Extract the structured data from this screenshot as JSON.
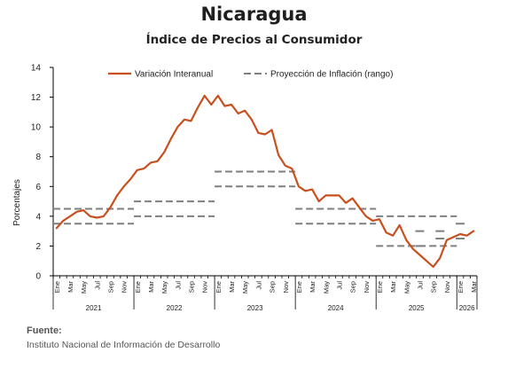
{
  "header": {
    "title": "Nicaragua",
    "subtitle": "Índice de Precios al Consumidor"
  },
  "source": {
    "label": "Fuente:",
    "text": "Instituto Nacional de Información de Desarrollo"
  },
  "chart_data": {
    "type": "line",
    "ylabel": "Porcentajes",
    "ylim": [
      0,
      14
    ],
    "yticks": [
      0,
      2,
      4,
      6,
      8,
      10,
      12,
      14
    ],
    "grid": false,
    "legend_position": "top",
    "month_tick_labels": [
      "Ene",
      "Mar",
      "May",
      "Jul",
      "Sep",
      "Nov"
    ],
    "year_labels": [
      "2021",
      "2022",
      "2023",
      "2024",
      "2025",
      "2026"
    ],
    "series": [
      {
        "name": "Variación Interanual",
        "color": "#c8501e",
        "start": "2021-01",
        "values": [
          3.2,
          3.7,
          4.0,
          4.3,
          4.4,
          4.0,
          3.9,
          4.0,
          4.6,
          5.4,
          6.0,
          6.5,
          7.1,
          7.2,
          7.6,
          7.7,
          8.3,
          9.2,
          10.0,
          10.5,
          10.4,
          11.3,
          12.1,
          11.5,
          12.1,
          11.4,
          11.5,
          10.9,
          11.1,
          10.5,
          9.6,
          9.5,
          9.8,
          8.1,
          7.4,
          7.2,
          6.0,
          5.7,
          5.8,
          5.0,
          5.4,
          5.4,
          5.4,
          4.9,
          5.2,
          4.6,
          4.0,
          3.7,
          3.8,
          2.9,
          2.7,
          3.4,
          2.4,
          1.8,
          1.4,
          1.0,
          0.6,
          1.2,
          2.4,
          2.6,
          2.8,
          2.7,
          3.0
        ]
      }
    ],
    "projection": {
      "name": "Proyección de Inflación (rango)",
      "color": "#7f7f7f",
      "ranges": [
        {
          "year": "2021",
          "low": 3.5,
          "high": 4.5
        },
        {
          "year": "2022",
          "low": 4.0,
          "high": 5.0
        },
        {
          "year": "2023",
          "low": 6.0,
          "high": 7.0
        },
        {
          "year": "2024",
          "low": 3.5,
          "high": 4.5
        },
        {
          "year": "2025",
          "low": 2.0,
          "high": 4.0
        }
      ],
      "markers_2025_2026": [
        {
          "period": "2025-07",
          "low": 2.0,
          "high": 3.0
        },
        {
          "period": "2025-10",
          "low": 2.5,
          "high": 3.0
        },
        {
          "period": "2026-01",
          "low": 2.5,
          "high": 3.5
        }
      ]
    }
  }
}
